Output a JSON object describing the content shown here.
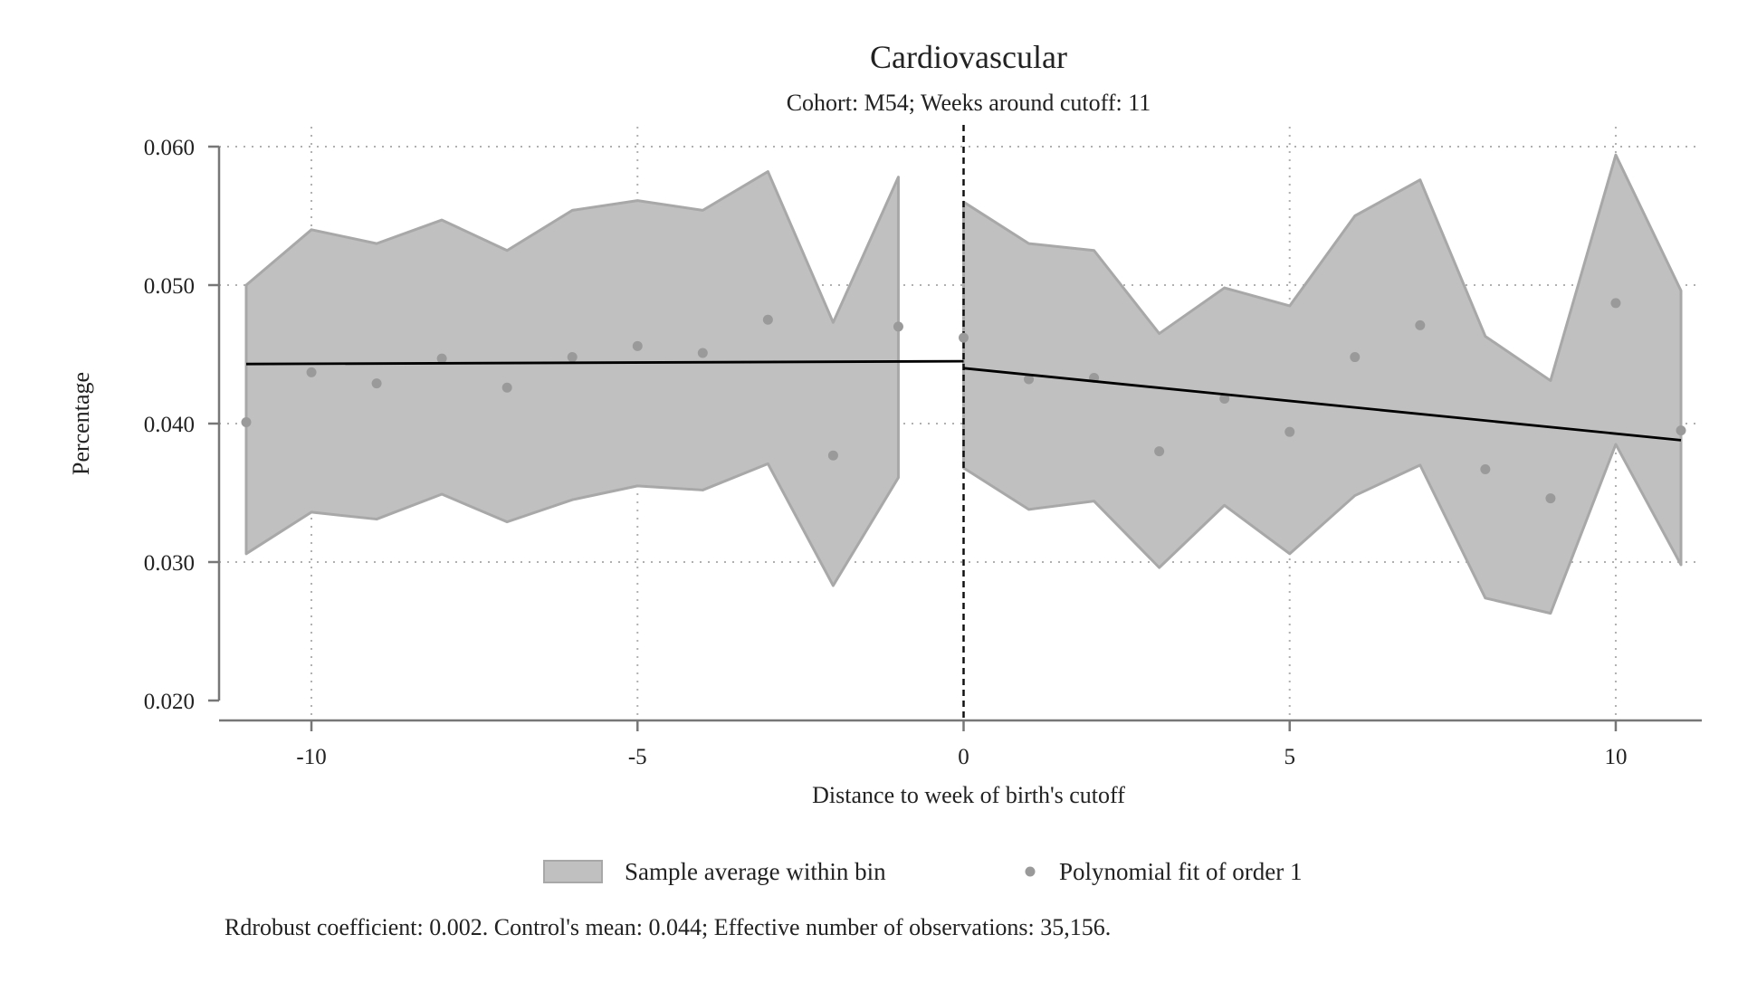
{
  "chart_data": {
    "type": "scatter",
    "title": "Cardiovascular",
    "subtitle": "Cohort: M54; Weeks around cutoff: 11",
    "xlabel": "Distance to week of birth's cutoff",
    "ylabel": "Percentage",
    "xlim": [
      -11,
      11
    ],
    "ylim": [
      0.02,
      0.06
    ],
    "x_ticks": [
      -10,
      -5,
      0,
      5,
      10
    ],
    "x_tick_labels": [
      "-10",
      "-5",
      "0",
      "5",
      "10"
    ],
    "y_ticks": [
      0.02,
      0.03,
      0.04,
      0.05,
      0.06
    ],
    "y_tick_labels": [
      "0.020",
      "0.030",
      "0.040",
      "0.050",
      "0.060"
    ],
    "grid": true,
    "cutoff_x": 0,
    "legend_position": "bottom",
    "legend": {
      "band_label": "Sample average within bin",
      "points_label": "Polynomial fit of order 1"
    },
    "note": "Rdrobust coefficient: 0.002. Control's mean: 0.044; Effective number of observations: 35,156.",
    "points": {
      "x": [
        -11,
        -10,
        -9,
        -8,
        -7,
        -6,
        -5,
        -4,
        -3,
        -2,
        -1,
        0,
        1,
        2,
        3,
        4,
        5,
        6,
        7,
        8,
        9,
        10,
        11
      ],
      "y": [
        0.0401,
        0.0437,
        0.0429,
        0.0447,
        0.0426,
        0.0448,
        0.0456,
        0.0451,
        0.0475,
        0.0377,
        0.047,
        0.0462,
        0.0432,
        0.0433,
        0.038,
        0.0418,
        0.0394,
        0.0448,
        0.0471,
        0.0367,
        0.0346,
        0.0487,
        0.0395
      ]
    },
    "band_left": {
      "x": [
        -11,
        -10,
        -9,
        -8,
        -7,
        -6,
        -5,
        -4,
        -3,
        -2,
        -1
      ],
      "upper": [
        0.05,
        0.054,
        0.053,
        0.0547,
        0.0525,
        0.0554,
        0.0561,
        0.0554,
        0.0582,
        0.0473,
        0.0578
      ],
      "lower": [
        0.0306,
        0.0336,
        0.0331,
        0.0349,
        0.0329,
        0.0345,
        0.0355,
        0.0352,
        0.0371,
        0.0283,
        0.0361
      ]
    },
    "band_right": {
      "x": [
        0,
        1,
        2,
        3,
        4,
        5,
        6,
        7,
        8,
        9,
        10,
        11
      ],
      "upper": [
        0.056,
        0.053,
        0.0525,
        0.0465,
        0.0498,
        0.0485,
        0.055,
        0.0576,
        0.0463,
        0.0431,
        0.0594,
        0.0496
      ],
      "lower": [
        0.0368,
        0.0338,
        0.0344,
        0.0296,
        0.0341,
        0.0306,
        0.0348,
        0.037,
        0.0274,
        0.0263,
        0.0385,
        0.0298
      ]
    },
    "fit_left": {
      "x": [
        -11,
        0
      ],
      "y": [
        0.0443,
        0.0445
      ]
    },
    "fit_right": {
      "x": [
        0,
        11
      ],
      "y": [
        0.044,
        0.0388
      ]
    },
    "colors": {
      "band_fill": "#c0c0c0",
      "band_stroke": "#a8a8a8",
      "points": "#9a9a9a",
      "fit_line": "#000000",
      "grid": "#b0b0b0",
      "axis": "#777777"
    }
  }
}
